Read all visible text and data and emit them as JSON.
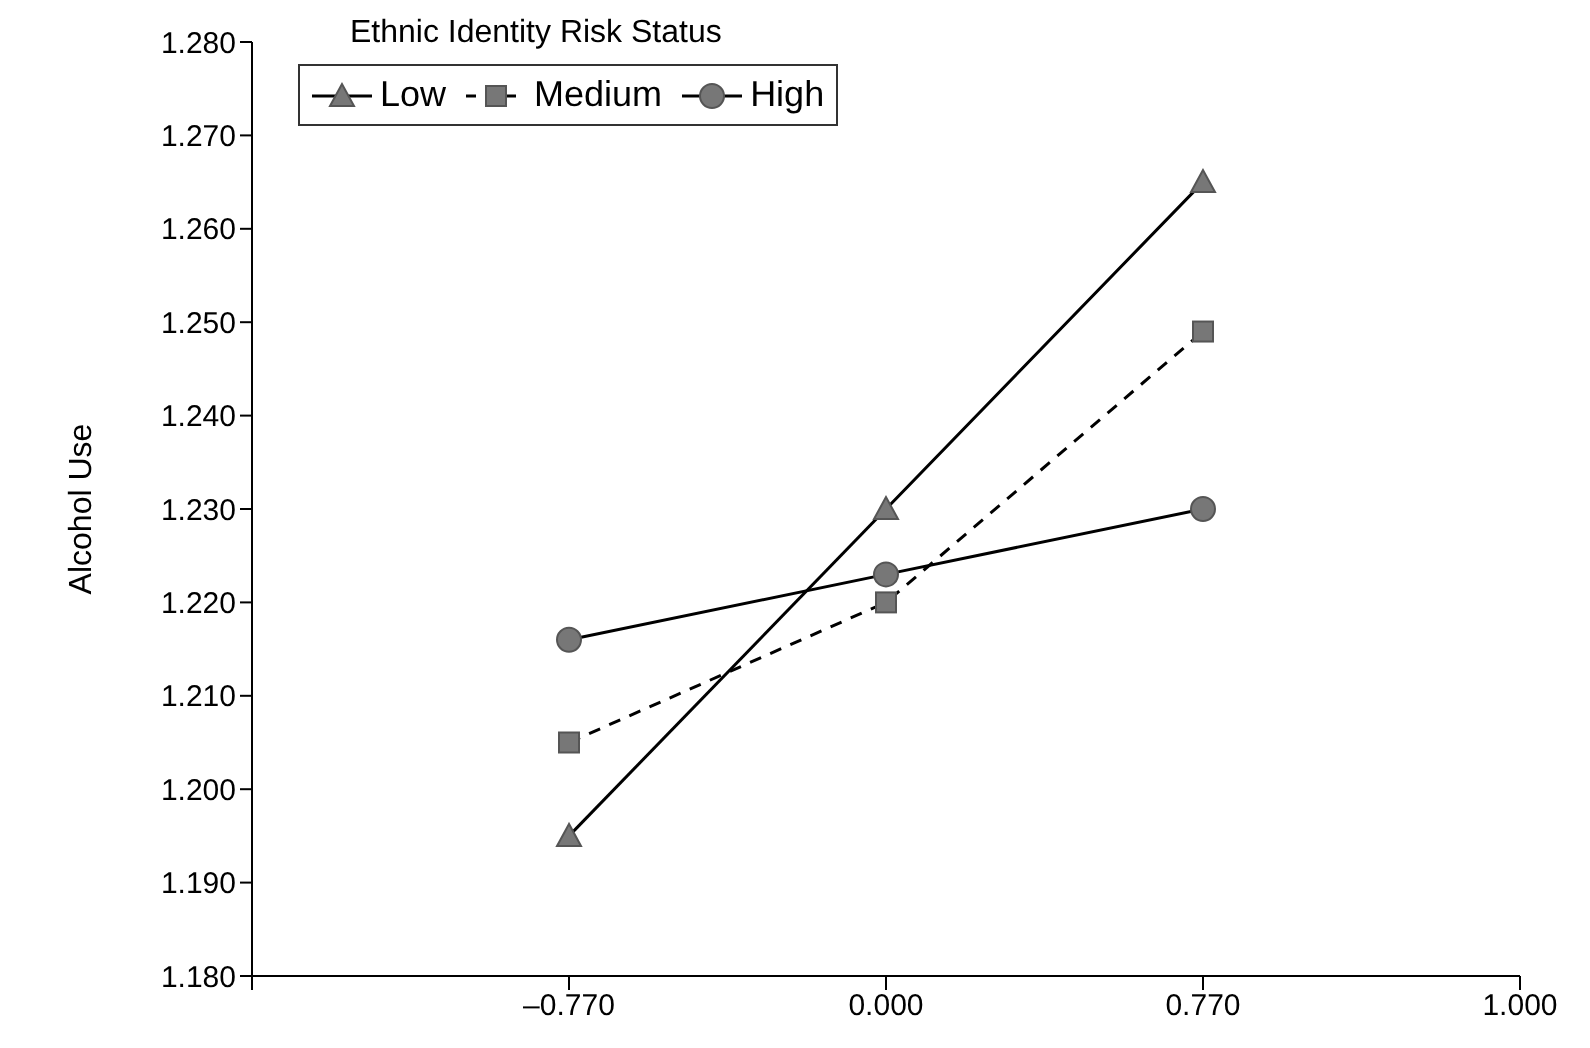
{
  "chart_data": {
    "type": "line",
    "ylabel": "Alcohol Use",
    "legend_title": "Ethnic Identity Risk Status",
    "categories": [
      null,
      "–0.770",
      "0.000",
      "0.770",
      "1.000"
    ],
    "series": [
      {
        "name": "Low",
        "color": "#000000",
        "marker": "triangle",
        "line_style": "solid",
        "values": [
          null,
          1.195,
          1.23,
          1.265,
          null
        ]
      },
      {
        "name": "Medium",
        "color": "#000000",
        "marker": "square",
        "line_style": "dashed",
        "values": [
          null,
          1.205,
          1.22,
          1.249,
          null
        ]
      },
      {
        "name": "High",
        "color": "#000000",
        "marker": "circle",
        "line_style": "solid",
        "values": [
          null,
          1.216,
          1.223,
          1.23,
          null
        ]
      }
    ],
    "ylim": [
      1.18,
      1.28
    ],
    "yticks": [
      {
        "value": 1.18,
        "label": "1.180"
      },
      {
        "value": 1.19,
        "label": "1.190"
      },
      {
        "value": 1.2,
        "label": "1.200"
      },
      {
        "value": 1.21,
        "label": "1.210"
      },
      {
        "value": 1.22,
        "label": "1.220"
      },
      {
        "value": 1.23,
        "label": "1.230"
      },
      {
        "value": 1.24,
        "label": "1.240"
      },
      {
        "value": 1.25,
        "label": "1.250"
      },
      {
        "value": 1.26,
        "label": "1.260"
      },
      {
        "value": 1.27,
        "label": "1.270"
      },
      {
        "value": 1.28,
        "label": "1.280"
      }
    ],
    "grid": false,
    "legend": "top left"
  }
}
